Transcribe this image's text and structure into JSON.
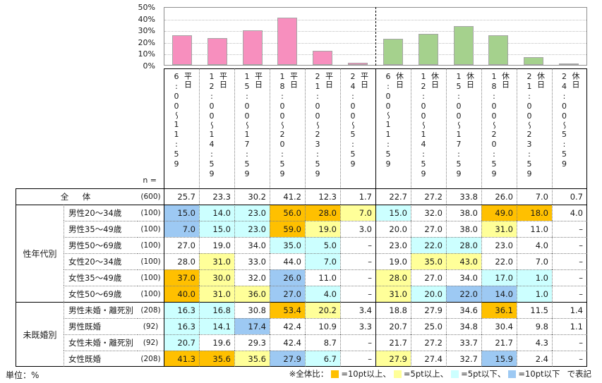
{
  "unit_label": "単位：%",
  "n_label": "n =",
  "chart_data": {
    "type": "bar",
    "title": "",
    "xlabel": "",
    "ylabel": "",
    "ylim": [
      0,
      50
    ],
    "y_ticks": [
      "50%",
      "40%",
      "30%",
      "20%",
      "10%",
      "0%"
    ],
    "grid": "dotted horizontal lines every 10%, dashed vertical divider between 平日 and 休日 groups",
    "categories": [
      "平日 6:00〜11:59",
      "平日 12:00〜14:59",
      "平日 15:00〜17:59",
      "平日 18:00〜20:59",
      "平日 21:00〜23:59",
      "平日 24:00〜5:59",
      "休日 6:00〜11:59",
      "休日 12:00〜14:59",
      "休日 15:00〜17:59",
      "休日 18:00〜20:59",
      "休日 21:00〜23:59",
      "休日 24:00〜5:59"
    ],
    "values": [
      25.7,
      23.3,
      30.2,
      41.2,
      12.3,
      1.7,
      22.7,
      27.2,
      33.8,
      26.0,
      7.0,
      0.7
    ],
    "series_colors": {
      "weekday": "#F78FBE",
      "holiday": "#A5D18D"
    },
    "bar_border": "#A6A6A6"
  },
  "table": {
    "columns": [
      {
        "time": "6:00〜11:59",
        "day": "平日"
      },
      {
        "time": "12:00〜14:59",
        "day": "平日"
      },
      {
        "time": "15:00〜17:59",
        "day": "平日"
      },
      {
        "time": "18:00〜20:59",
        "day": "平日"
      },
      {
        "time": "21:00〜23:59",
        "day": "平日"
      },
      {
        "time": "24:00〜5:59",
        "day": "平日"
      },
      {
        "time": "6:00〜11:59",
        "day": "休日"
      },
      {
        "time": "12:00〜14:59",
        "day": "休日"
      },
      {
        "time": "15:00〜17:59",
        "day": "休日"
      },
      {
        "time": "18:00〜20:59",
        "day": "休日"
      },
      {
        "time": "21:00〜23:59",
        "day": "休日"
      },
      {
        "time": "24:00〜5:59",
        "day": "休日"
      }
    ],
    "rows": [
      {
        "label": "全　体",
        "n": "(600)",
        "values": [
          "25.7",
          "23.3",
          "30.2",
          "41.2",
          "12.3",
          "1.7",
          "22.7",
          "27.2",
          "33.8",
          "26.0",
          "7.0",
          "0.7"
        ],
        "hl": [
          null,
          null,
          null,
          null,
          null,
          null,
          null,
          null,
          null,
          null,
          null,
          null
        ]
      },
      {
        "group": "性年代別",
        "group_span": 6,
        "label": "男性20〜34歳",
        "n": "(100)",
        "values": [
          "15.0",
          "14.0",
          "23.0",
          "56.0",
          "28.0",
          "7.0",
          "15.0",
          "32.0",
          "38.0",
          "49.0",
          "18.0",
          "4.0"
        ],
        "hl": [
          "blue",
          "cyan",
          "cyan",
          "orange",
          "orange",
          "yellow",
          "cyan",
          null,
          null,
          "orange",
          "orange",
          null
        ]
      },
      {
        "label": "男性35〜49歳",
        "n": "(100)",
        "values": [
          "7.0",
          "15.0",
          "23.0",
          "59.0",
          "19.0",
          "3.0",
          "20.0",
          "27.0",
          "38.0",
          "31.0",
          "11.0",
          "–"
        ],
        "hl": [
          "blue",
          "cyan",
          "cyan",
          "orange",
          "yellow",
          null,
          null,
          null,
          null,
          "yellow",
          null,
          null
        ]
      },
      {
        "label": "男性50〜69歳",
        "n": "(100)",
        "values": [
          "27.0",
          "19.0",
          "34.0",
          "35.0",
          "5.0",
          "–",
          "23.0",
          "22.0",
          "28.0",
          "23.0",
          "4.0",
          "–"
        ],
        "hl": [
          null,
          null,
          null,
          "cyan",
          "cyan",
          null,
          null,
          "cyan",
          "cyan",
          null,
          null,
          null
        ]
      },
      {
        "label": "女性20〜34歳",
        "n": "(100)",
        "values": [
          "28.0",
          "31.0",
          "33.0",
          "44.0",
          "7.0",
          "–",
          "19.0",
          "35.0",
          "43.0",
          "22.0",
          "7.0",
          "–"
        ],
        "hl": [
          null,
          "yellow",
          null,
          null,
          "cyan",
          null,
          null,
          "yellow",
          "yellow",
          null,
          null,
          null
        ]
      },
      {
        "label": "女性35〜49歳",
        "n": "(100)",
        "values": [
          "37.0",
          "30.0",
          "32.0",
          "26.0",
          "11.0",
          "–",
          "28.0",
          "27.0",
          "34.0",
          "17.0",
          "1.0",
          "–"
        ],
        "hl": [
          "orange",
          "yellow",
          null,
          "blue",
          null,
          null,
          "yellow",
          null,
          null,
          "cyan",
          "cyan",
          null
        ]
      },
      {
        "label": "女性50〜69歳",
        "n": "(100)",
        "values": [
          "40.0",
          "31.0",
          "36.0",
          "27.0",
          "4.0",
          "–",
          "31.0",
          "20.0",
          "22.0",
          "14.0",
          "1.0",
          "–"
        ],
        "hl": [
          "orange",
          "yellow",
          "yellow",
          "blue",
          "cyan",
          null,
          "yellow",
          "cyan",
          "blue",
          "blue",
          "cyan",
          null
        ]
      },
      {
        "group": "未既婚別",
        "group_span": 4,
        "label": "男性未婚・離死別",
        "n": "(208)",
        "values": [
          "16.3",
          "16.8",
          "30.8",
          "53.4",
          "20.2",
          "3.4",
          "18.8",
          "27.9",
          "34.6",
          "36.1",
          "11.5",
          "1.4"
        ],
        "hl": [
          "cyan",
          "cyan",
          null,
          "orange",
          "yellow",
          null,
          null,
          null,
          null,
          "orange",
          null,
          null
        ]
      },
      {
        "label": "男性既婚",
        "n": "(92)",
        "values": [
          "16.3",
          "14.1",
          "17.4",
          "42.4",
          "10.9",
          "3.3",
          "20.7",
          "25.0",
          "34.8",
          "30.4",
          "9.8",
          "1.1"
        ],
        "hl": [
          "cyan",
          "cyan",
          "blue",
          null,
          null,
          null,
          null,
          null,
          null,
          null,
          null,
          null
        ]
      },
      {
        "label": "女性未婚・離死別",
        "n": "(92)",
        "values": [
          "20.7",
          "19.6",
          "29.3",
          "42.4",
          "8.7",
          "–",
          "21.7",
          "27.2",
          "33.7",
          "21.7",
          "4.3",
          "–"
        ],
        "hl": [
          "cyan",
          null,
          null,
          null,
          null,
          null,
          null,
          null,
          null,
          null,
          null,
          null
        ]
      },
      {
        "label": "女性既婚",
        "n": "(208)",
        "values": [
          "41.3",
          "35.6",
          "35.6",
          "27.9",
          "6.7",
          "–",
          "27.9",
          "27.4",
          "32.7",
          "15.9",
          "2.4",
          "–"
        ],
        "hl": [
          "orange",
          "orange",
          "yellow",
          "blue",
          "cyan",
          null,
          "yellow",
          null,
          null,
          "blue",
          null,
          null
        ]
      }
    ]
  },
  "legend": {
    "prefix": "※全体比：",
    "items": [
      {
        "name": "orange",
        "color": "#FFC000",
        "label": "=10pt以上、"
      },
      {
        "name": "yellow",
        "color": "#FFFF99",
        "label": "=5pt以上、"
      },
      {
        "name": "cyan",
        "color": "#CCFFFF",
        "label": "=5pt以下、"
      },
      {
        "name": "blue",
        "color": "#9DC9F3",
        "label": "=10pt以下"
      }
    ],
    "suffix": "で表記"
  }
}
